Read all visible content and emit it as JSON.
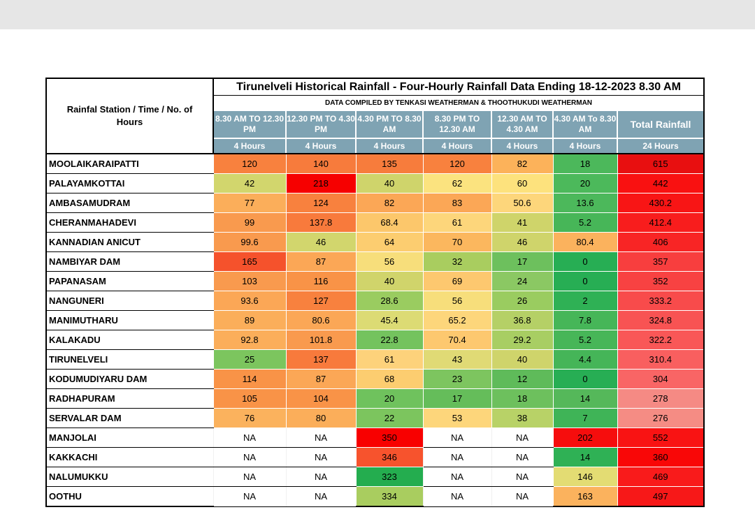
{
  "table": {
    "corner_label": "Rainfal Station / Time / No. of Hours",
    "title": "Tirunelveli Historical Rainfall - Four-Hourly Rainfall Data Ending 18-12-2023 8.30 AM",
    "subtitle": "DATA COMPILED BY TENKASI WEATHERMAN & THOOTHUKUDI WEATHERMAN",
    "columns": [
      "8.30 AM TO 12.30 PM",
      "12.30 PM TO 4.30 PM",
      "4.30 PM TO 8.30 AM",
      "8.30 PM TO 12.30 AM",
      "12.30 AM TO 4.30 AM",
      "4.30 AM To 8.30 AM",
      "Total Rainfall"
    ],
    "hours": [
      "4 Hours",
      "4 Hours",
      "4 Hours",
      "4 Hours",
      "4 Hours",
      "4 Hours",
      "24 Hours"
    ],
    "rows": [
      {
        "station": "MOOLAIKARAIPATTI",
        "values": [
          "120",
          "140",
          "135",
          "120",
          "82",
          "18",
          "615"
        ]
      },
      {
        "station": "PALAYAMKOTTAI",
        "values": [
          "42",
          "218",
          "40",
          "62",
          "60",
          "20",
          "442"
        ]
      },
      {
        "station": "AMBASAMUDRAM",
        "values": [
          "77",
          "124",
          "82",
          "83",
          "50.6",
          "13.6",
          "430.2"
        ]
      },
      {
        "station": "CHERANMAHADEVI",
        "values": [
          "99",
          "137.8",
          "68.4",
          "61",
          "41",
          "5.2",
          "412.4"
        ]
      },
      {
        "station": "KANNADIAN ANICUT",
        "values": [
          "99.6",
          "46",
          "64",
          "70",
          "46",
          "80.4",
          "406"
        ]
      },
      {
        "station": "NAMBIYAR DAM",
        "values": [
          "165",
          "87",
          "56",
          "32",
          "17",
          "0",
          "357"
        ]
      },
      {
        "station": "PAPANASAM",
        "values": [
          "103",
          "116",
          "40",
          "69",
          "24",
          "0",
          "352"
        ]
      },
      {
        "station": "NANGUNERI",
        "values": [
          "93.6",
          "127",
          "28.6",
          "56",
          "26",
          "2",
          "333.2"
        ]
      },
      {
        "station": "MANIMUTHARU",
        "values": [
          "89",
          "80.6",
          "45.4",
          "65.2",
          "36.8",
          "7.8",
          "324.8"
        ]
      },
      {
        "station": "KALAKADU",
        "values": [
          "92.8",
          "101.8",
          "22.8",
          "70.4",
          "29.2",
          "5.2",
          "322.2"
        ]
      },
      {
        "station": "TIRUNELVELI",
        "values": [
          "25",
          "137",
          "61",
          "43",
          "40",
          "4.4",
          "310.4"
        ]
      },
      {
        "station": "KODUMUDIYARU DAM",
        "values": [
          "114",
          "87",
          "68",
          "23",
          "12",
          "0",
          "304"
        ]
      },
      {
        "station": "RADHAPURAM",
        "values": [
          "105",
          "104",
          "20",
          "17",
          "18",
          "14",
          "278"
        ]
      },
      {
        "station": "SERVALAR DAM",
        "values": [
          "76",
          "80",
          "22",
          "53",
          "38",
          "7",
          "276"
        ]
      },
      {
        "station": "MANJOLAI",
        "values": [
          "NA",
          "NA",
          "350",
          "NA",
          "NA",
          "202",
          "552"
        ]
      },
      {
        "station": "KAKKACHI",
        "values": [
          "NA",
          "NA",
          "346",
          "NA",
          "NA",
          "14",
          "360"
        ]
      },
      {
        "station": "NALUMUKKU",
        "values": [
          "NA",
          "NA",
          "323",
          "NA",
          "NA",
          "146",
          "469"
        ]
      },
      {
        "station": "OOTHU",
        "values": [
          "NA",
          "NA",
          "334",
          "NA",
          "NA",
          "163",
          "497"
        ]
      }
    ],
    "cell_colors": [
      [
        "#f8813e",
        "#f77b3c",
        "#f77c3c",
        "#f8813e",
        "#fcb25a",
        "#4cb85b",
        "#e80f10"
      ],
      [
        "#d2d66d",
        "#f60000",
        "#cfd46b",
        "#fbe37f",
        "#fde27d",
        "#4cb95b",
        "#f91111"
      ],
      [
        "#fbae5a",
        "#f8813e",
        "#fba756",
        "#fba756",
        "#fdd67b",
        "#4cb85b",
        "#f81515"
      ],
      [
        "#f99a4e",
        "#f87a3c",
        "#fcc76b",
        "#fdd67b",
        "#cfd46a",
        "#47b658",
        "#f81d1d"
      ],
      [
        "#f99a4e",
        "#d2d66d",
        "#fccd70",
        "#fbb75e",
        "#cfd46b",
        "#fbb25d",
        "#f82525"
      ],
      [
        "#f5522c",
        "#fba756",
        "#f7de7b",
        "#a9cd5f",
        "#6dc05d",
        "#27ae54",
        "#f83e3e"
      ],
      [
        "#f99a4e",
        "#f99347",
        "#d0d46b",
        "#fdc86f",
        "#8bc863",
        "#27ae54",
        "#f84242"
      ],
      [
        "#fba756",
        "#f8813e",
        "#9acc60",
        "#f7de7b",
        "#9acc60",
        "#2fb155",
        "#f84b4b"
      ],
      [
        "#fbae5a",
        "#fba756",
        "#dcdb74",
        "#fdd67b",
        "#b5d066",
        "#46b658",
        "#f85353"
      ],
      [
        "#fbae5a",
        "#f99a4e",
        "#74c35e",
        "#fdc86f",
        "#a8ce63",
        "#47b658",
        "#f95757"
      ],
      [
        "#7cc55e",
        "#f87a3c",
        "#fdd27b",
        "#e0da75",
        "#cfd46b",
        "#45b558",
        "#f95f5f"
      ],
      [
        "#f99347",
        "#fba756",
        "#fccd70",
        "#7dc55f",
        "#5fbb5a",
        "#27ae54",
        "#f96565"
      ],
      [
        "#f99347",
        "#f99347",
        "#6fc25d",
        "#65bd5a",
        "#6dc05d",
        "#55b85a",
        "#f58a84"
      ],
      [
        "#fbb25d",
        "#fbae5a",
        "#7cc55e",
        "#fdd67b",
        "#b8d267",
        "#3fb457",
        "#f58c84"
      ],
      [
        "#ffffff",
        "#ffffff",
        "#f80000",
        "#ffffff",
        "#ffffff",
        "#f60d0d",
        "#f91313"
      ],
      [
        "#ffffff",
        "#ffffff",
        "#f7532d",
        "#ffffff",
        "#ffffff",
        "#2fb155",
        "#f90707"
      ],
      [
        "#ffffff",
        "#ffffff",
        "#24ad4f",
        "#ffffff",
        "#ffffff",
        "#e3dc73",
        "#f91b1b"
      ],
      [
        "#ffffff",
        "#ffffff",
        "#a9cd5f",
        "#ffffff",
        "#ffffff",
        "#fbb25d",
        "#f71818"
      ]
    ]
  }
}
